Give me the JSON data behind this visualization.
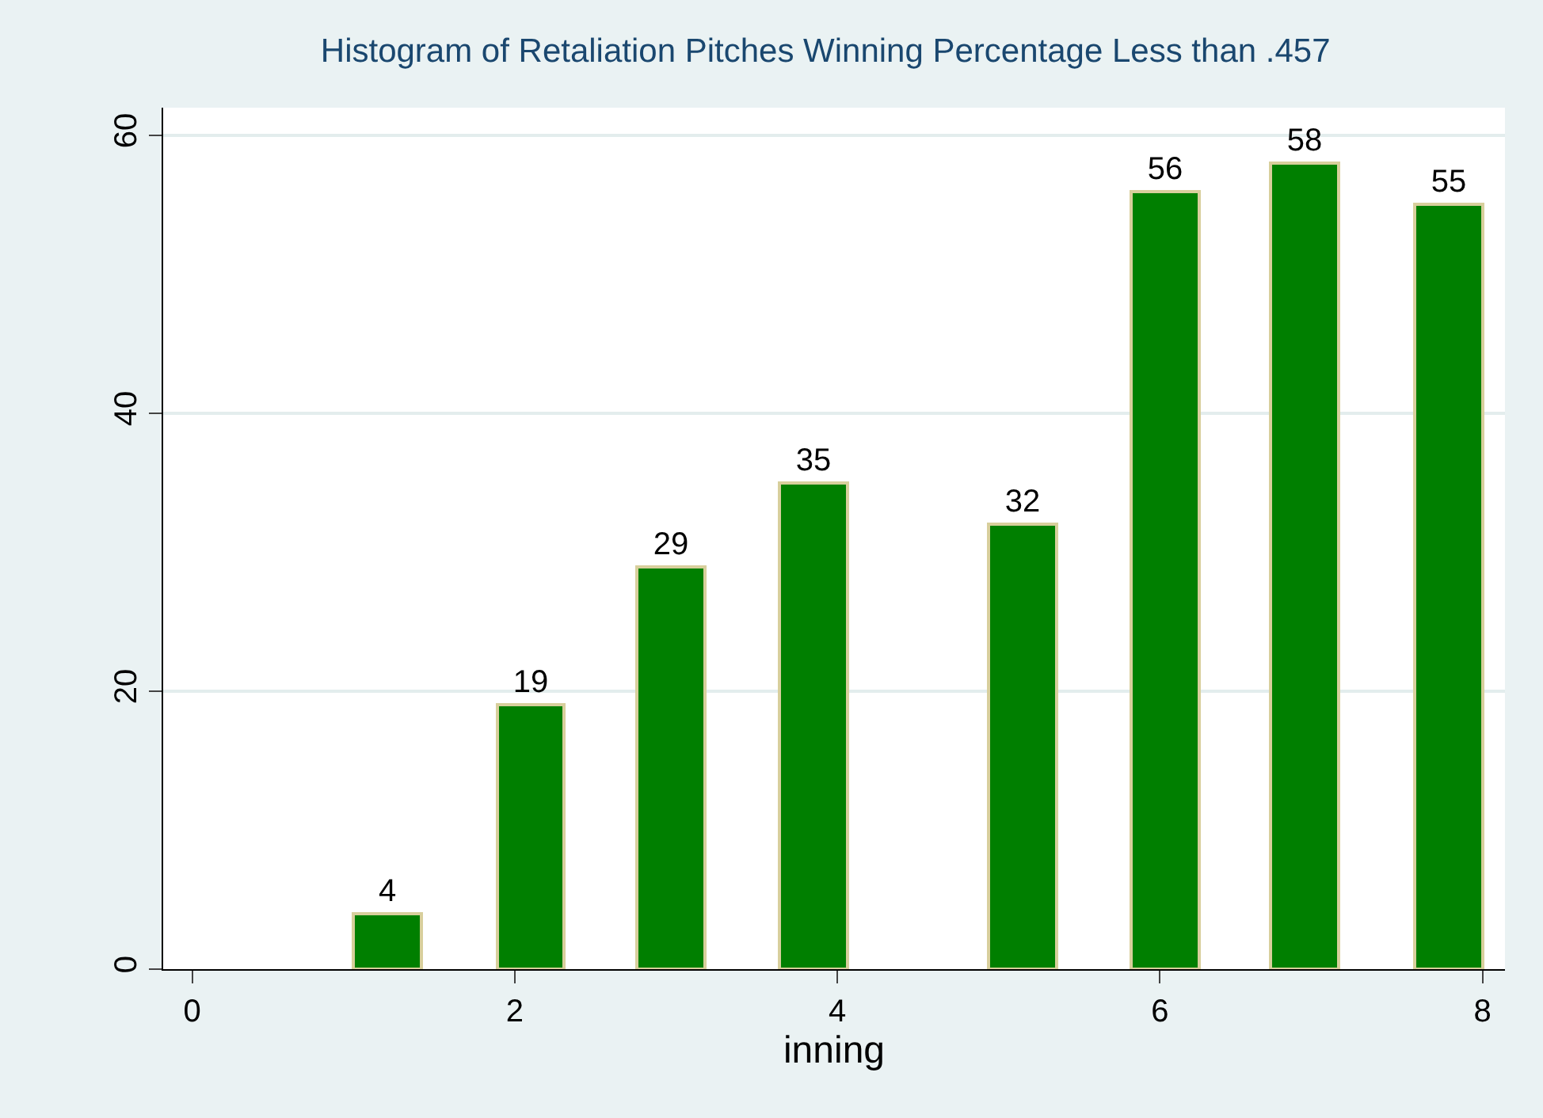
{
  "chart_data": {
    "type": "bar",
    "title": "Histogram of Retaliation Pitches Winning Percentage Less than .457",
    "xlabel": "inning",
    "x": [
      1.21,
      2.1,
      2.97,
      3.85,
      5.15,
      6.03,
      6.9,
      7.79
    ],
    "values": [
      4,
      19,
      29,
      35,
      32,
      56,
      58,
      55
    ],
    "color": "#007f00",
    "xlim": [
      -0.18,
      8.14
    ],
    "xticks": [
      0,
      2,
      4,
      6,
      8
    ],
    "ylim": [
      0,
      62
    ],
    "yticks": [
      0,
      20,
      40,
      60
    ],
    "grid": "y",
    "data_labels": true
  }
}
